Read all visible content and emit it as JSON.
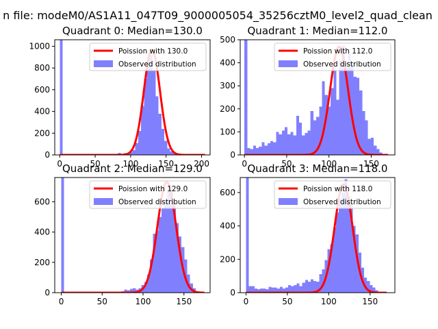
{
  "figure": {
    "title": "n file: modeM0/AS1A11_047T09_9000005054_35256cztM0_level2_quad_clean",
    "colors": {
      "observed": "#8080ff",
      "poisson": "#ff0000"
    }
  },
  "chart_data": [
    {
      "type": "bar",
      "title": "Quadrant 0: Median=130.0",
      "xlim": [
        -7,
        212
      ],
      "ylim": [
        0,
        1060
      ],
      "xticks": [
        0,
        50,
        100,
        150,
        200
      ],
      "yticks": [
        0,
        200,
        400,
        600,
        800,
        1000
      ],
      "legend": {
        "line": "Poission with 130.0",
        "bar": "Observed distribution",
        "position": "top-right"
      },
      "bin_width": 4.1,
      "bins": [
        [
          0,
          1060
        ],
        [
          4.1,
          0
        ],
        [
          8.2,
          0
        ],
        [
          12.3,
          0
        ],
        [
          16.4,
          0
        ],
        [
          20.5,
          0
        ],
        [
          24.6,
          0
        ],
        [
          28.7,
          0
        ],
        [
          32.8,
          0
        ],
        [
          36.9,
          0
        ],
        [
          41,
          0
        ],
        [
          45.1,
          0
        ],
        [
          49.2,
          0
        ],
        [
          53.3,
          0
        ],
        [
          57.4,
          0
        ],
        [
          61.5,
          0
        ],
        [
          65.6,
          0
        ],
        [
          69.7,
          0
        ],
        [
          73.8,
          0
        ],
        [
          77.9,
          10
        ],
        [
          82,
          20
        ],
        [
          86.1,
          5
        ],
        [
          90.2,
          15
        ],
        [
          94.3,
          20
        ],
        [
          98.4,
          25
        ],
        [
          102.5,
          45
        ],
        [
          106.6,
          110
        ],
        [
          110.7,
          220
        ],
        [
          114.8,
          450
        ],
        [
          118.9,
          700
        ],
        [
          123,
          890
        ],
        [
          127.1,
          920
        ],
        [
          131.2,
          780
        ],
        [
          135.3,
          540
        ],
        [
          139.4,
          380
        ],
        [
          143.5,
          240
        ],
        [
          147.6,
          130
        ],
        [
          151.7,
          60
        ],
        [
          155.8,
          30
        ],
        [
          159.9,
          15
        ],
        [
          164,
          5
        ],
        [
          168.1,
          3
        ],
        [
          172.2,
          2
        ],
        [
          176.3,
          1
        ],
        [
          180.4,
          1
        ],
        [
          184.5,
          0
        ],
        [
          188.6,
          0
        ],
        [
          192.7,
          0
        ],
        [
          196.8,
          0
        ],
        [
          200.9,
          0
        ]
      ],
      "poisson": {
        "mean": 130,
        "peak": 970,
        "x_range": [
          0,
          205
        ]
      }
    },
    {
      "type": "bar",
      "title": "Quadrant 1: Median=112.0",
      "xlim": [
        -5,
        178
      ],
      "ylim": [
        0,
        500
      ],
      "xticks": [
        0,
        50,
        100,
        150
      ],
      "yticks": [
        0,
        100,
        200,
        300,
        400,
        500
      ],
      "legend": {
        "line": "Poission with 112.0",
        "bar": "Observed distribution",
        "position": "top-right"
      },
      "bin_width": 3.4,
      "bins": [
        [
          0,
          500
        ],
        [
          3.4,
          30
        ],
        [
          6.8,
          25
        ],
        [
          10.2,
          40
        ],
        [
          13.6,
          30
        ],
        [
          17,
          35
        ],
        [
          20.4,
          55
        ],
        [
          23.8,
          40
        ],
        [
          27.2,
          50
        ],
        [
          30.6,
          60
        ],
        [
          34,
          55
        ],
        [
          37.4,
          100
        ],
        [
          40.8,
          90
        ],
        [
          44.2,
          105
        ],
        [
          47.6,
          120
        ],
        [
          51,
          90
        ],
        [
          54.4,
          100
        ],
        [
          57.8,
          85
        ],
        [
          61.2,
          170
        ],
        [
          64.6,
          140
        ],
        [
          68,
          85
        ],
        [
          71.4,
          95
        ],
        [
          74.8,
          105
        ],
        [
          78.2,
          190
        ],
        [
          81.6,
          150
        ],
        [
          85,
          165
        ],
        [
          88.4,
          210
        ],
        [
          91.8,
          320
        ],
        [
          95.2,
          260
        ],
        [
          98.6,
          210
        ],
        [
          102,
          290
        ],
        [
          105.4,
          370
        ],
        [
          108.8,
          240
        ],
        [
          112.2,
          410
        ],
        [
          115.6,
          475
        ],
        [
          119,
          380
        ],
        [
          122.4,
          440
        ],
        [
          125.8,
          400
        ],
        [
          129.2,
          340
        ],
        [
          132.6,
          335
        ],
        [
          136,
          280
        ],
        [
          139.4,
          190
        ],
        [
          142.8,
          150
        ],
        [
          146.2,
          70
        ],
        [
          149.6,
          75
        ],
        [
          153,
          40
        ],
        [
          156.4,
          25
        ],
        [
          159.8,
          10
        ],
        [
          163.2,
          5
        ],
        [
          166.6,
          2
        ]
      ],
      "poisson": {
        "mean": 112,
        "peak": 470,
        "x_range": [
          0,
          170
        ]
      }
    },
    {
      "type": "bar",
      "title": "Quadrant 2: Median=129.0",
      "xlim": [
        -8,
        182
      ],
      "ylim": [
        0,
        760
      ],
      "xticks": [
        0,
        50,
        100,
        150
      ],
      "yticks": [
        0,
        200,
        400,
        600
      ],
      "legend": {
        "line": "Poission with 129.0",
        "bar": "Observed distribution",
        "position": "top-right"
      },
      "bin_width": 3.5,
      "bins": [
        [
          0,
          760
        ],
        [
          3.5,
          0
        ],
        [
          7,
          0
        ],
        [
          10.5,
          0
        ],
        [
          14,
          0
        ],
        [
          17.5,
          0
        ],
        [
          21,
          0
        ],
        [
          24.5,
          0
        ],
        [
          28,
          0
        ],
        [
          31.5,
          0
        ],
        [
          35,
          0
        ],
        [
          38.5,
          0
        ],
        [
          42,
          0
        ],
        [
          45.5,
          0
        ],
        [
          49,
          0
        ],
        [
          52.5,
          0
        ],
        [
          56,
          0
        ],
        [
          59.5,
          0
        ],
        [
          63,
          0
        ],
        [
          66.5,
          0
        ],
        [
          70,
          0
        ],
        [
          73.5,
          10
        ],
        [
          77,
          20
        ],
        [
          80.5,
          15
        ],
        [
          84,
          25
        ],
        [
          87.5,
          30
        ],
        [
          91,
          20
        ],
        [
          94.5,
          30
        ],
        [
          98,
          50
        ],
        [
          101.5,
          70
        ],
        [
          105,
          120
        ],
        [
          108.5,
          220
        ],
        [
          112,
          390
        ],
        [
          115.5,
          410
        ],
        [
          119,
          500
        ],
        [
          122.5,
          560
        ],
        [
          126,
          610
        ],
        [
          129.5,
          680
        ],
        [
          133,
          700
        ],
        [
          136.5,
          580
        ],
        [
          140,
          460
        ],
        [
          143.5,
          370
        ],
        [
          147,
          300
        ],
        [
          150.5,
          220
        ],
        [
          154,
          120
        ],
        [
          157.5,
          60
        ],
        [
          161,
          30
        ],
        [
          164.5,
          10
        ],
        [
          168,
          5
        ],
        [
          171.5,
          2
        ]
      ],
      "poisson": {
        "mean": 129,
        "peak": 730,
        "x_range": [
          0,
          175
        ]
      }
    },
    {
      "type": "bar",
      "title": "Quadrant 3: Median=118.0",
      "xlim": [
        -7,
        180
      ],
      "ylim": [
        0,
        690
      ],
      "xticks": [
        0,
        50,
        100,
        150
      ],
      "yticks": [
        0,
        200,
        400,
        600
      ],
      "legend": {
        "line": "Poission with 118.0",
        "bar": "Observed distribution",
        "position": "top-right"
      },
      "bin_width": 3.4,
      "bins": [
        [
          0,
          690
        ],
        [
          3.4,
          40
        ],
        [
          6.8,
          40
        ],
        [
          10.2,
          25
        ],
        [
          13.6,
          20
        ],
        [
          17,
          25
        ],
        [
          20.4,
          25
        ],
        [
          23.8,
          20
        ],
        [
          27.2,
          35
        ],
        [
          30.6,
          30
        ],
        [
          34,
          30
        ],
        [
          37.4,
          25
        ],
        [
          40.8,
          35
        ],
        [
          44.2,
          25
        ],
        [
          47.6,
          30
        ],
        [
          51,
          45
        ],
        [
          54.4,
          40
        ],
        [
          57.8,
          45
        ],
        [
          61.2,
          55
        ],
        [
          64.6,
          40
        ],
        [
          68,
          60
        ],
        [
          71.4,
          75
        ],
        [
          74.8,
          65
        ],
        [
          78.2,
          80
        ],
        [
          81.6,
          70
        ],
        [
          85,
          65
        ],
        [
          88.4,
          110
        ],
        [
          91.8,
          140
        ],
        [
          95.2,
          195
        ],
        [
          98.6,
          260
        ],
        [
          102,
          290
        ],
        [
          105.4,
          390
        ],
        [
          108.8,
          480
        ],
        [
          112.2,
          560
        ],
        [
          115.6,
          600
        ],
        [
          119,
          680
        ],
        [
          122.4,
          580
        ],
        [
          125.8,
          530
        ],
        [
          129.2,
          400
        ],
        [
          132.6,
          350
        ],
        [
          136,
          240
        ],
        [
          139.4,
          150
        ],
        [
          142.8,
          90
        ],
        [
          146.2,
          70
        ],
        [
          149.6,
          45
        ],
        [
          153,
          30
        ],
        [
          156.4,
          15
        ],
        [
          159.8,
          5
        ],
        [
          163.2,
          2
        ],
        [
          166.6,
          1
        ]
      ],
      "poisson": {
        "mean": 118,
        "peak": 650,
        "x_range": [
          0,
          170
        ]
      }
    }
  ]
}
